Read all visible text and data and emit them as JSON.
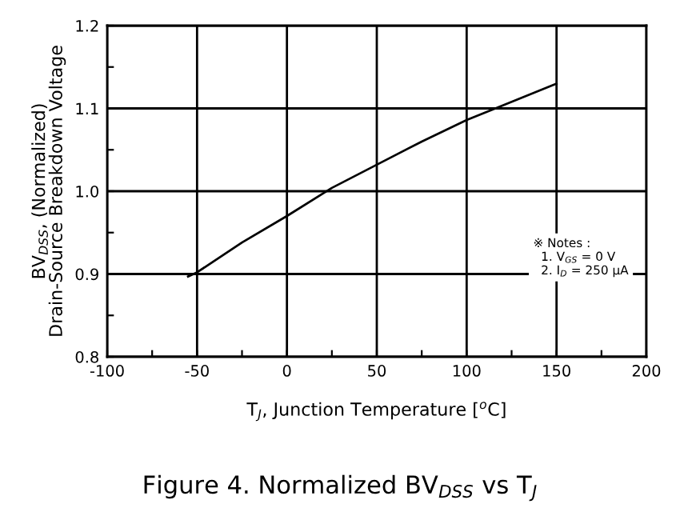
{
  "chart_data": {
    "type": "line",
    "title": "Figure 4. Normalized BV$_{DSS}$ vs T$_{J}$",
    "xlabel": "T$_{J}$, Junction Temperature [$^{o}$C]",
    "ylabel": "BV$_{DSS}$, (Normalized)\nDrain-Source Breakdown Voltage",
    "annotations": [
      "※ Notes :\n  1. V$_{GS}$ = 0 V\n  2. I$_{D}$ = 250 μA"
    ],
    "x": [
      -55,
      -50,
      -25,
      0,
      25,
      50,
      75,
      100,
      116,
      150
    ],
    "series": [
      {
        "color": "#000000",
        "values": [
          0.897,
          0.902,
          0.938,
          0.97,
          1.004,
          1.032,
          1.06,
          1.086,
          1.1,
          1.13
        ]
      }
    ],
    "xlim": [
      -100,
      200
    ],
    "xticks": [
      -100,
      {
        "value": -75,
        "label": null
      },
      -50,
      {
        "value": -25,
        "label": null
      },
      0,
      {
        "value": 25,
        "label": null
      },
      50,
      {
        "value": 75,
        "label": null
      },
      100,
      {
        "value": 125,
        "label": null
      },
      150,
      {
        "value": 175,
        "label": null
      },
      200
    ],
    "ylim": [
      0.8,
      1.2
    ],
    "yticks": [
      {
        "value": 0.8,
        "label": "0.8"
      },
      {
        "value": 0.85,
        "label": null
      },
      {
        "value": 0.9,
        "label": "0.9"
      },
      {
        "value": 0.95,
        "label": null
      },
      {
        "value": 1.0,
        "label": "1.0"
      },
      {
        "value": 1.05,
        "label": null
      },
      {
        "value": 1.1,
        "label": "1.1"
      },
      {
        "value": 1.15,
        "label": null
      },
      {
        "value": 1.2,
        "label": "1.2"
      }
    ],
    "grid": true,
    "marker": "none",
    "line_style": "solid"
  }
}
